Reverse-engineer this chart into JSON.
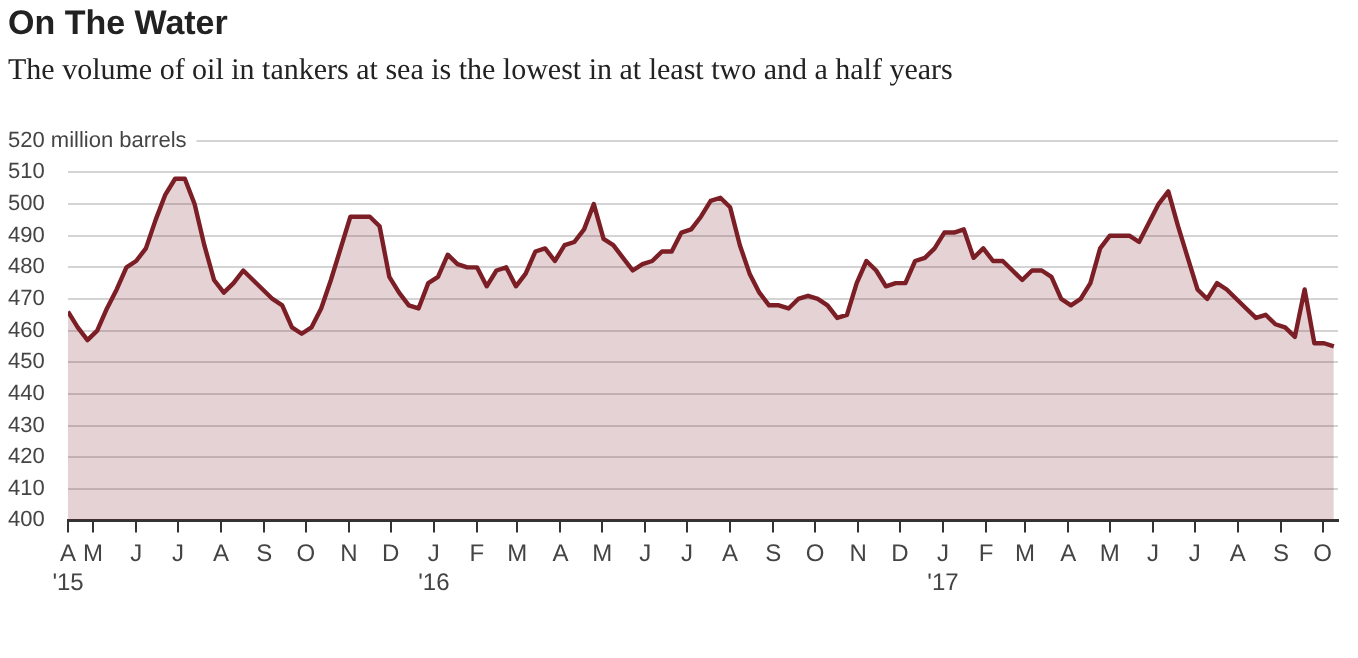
{
  "chart_data": {
    "type": "area",
    "title": "On The Water",
    "subtitle": "The volume of oil in tankers at sea is the lowest in at least two and a half years",
    "x": [
      "2015-04-13",
      "2015-04-20",
      "2015-04-27",
      "2015-05-04",
      "2015-05-11",
      "2015-05-18",
      "2015-05-25",
      "2015-06-01",
      "2015-06-08",
      "2015-06-15",
      "2015-06-22",
      "2015-06-29",
      "2015-07-06",
      "2015-07-13",
      "2015-07-20",
      "2015-07-27",
      "2015-08-03",
      "2015-08-10",
      "2015-08-17",
      "2015-08-24",
      "2015-08-31",
      "2015-09-07",
      "2015-09-14",
      "2015-09-21",
      "2015-09-28",
      "2015-10-05",
      "2015-10-12",
      "2015-10-19",
      "2015-10-26",
      "2015-11-02",
      "2015-11-09",
      "2015-11-16",
      "2015-11-23",
      "2015-11-30",
      "2015-12-07",
      "2015-12-14",
      "2015-12-21",
      "2015-12-28",
      "2016-01-04",
      "2016-01-11",
      "2016-01-18",
      "2016-01-25",
      "2016-02-01",
      "2016-02-08",
      "2016-02-15",
      "2016-02-22",
      "2016-02-29",
      "2016-03-07",
      "2016-03-14",
      "2016-03-21",
      "2016-03-28",
      "2016-04-04",
      "2016-04-11",
      "2016-04-18",
      "2016-04-25",
      "2016-05-02",
      "2016-05-09",
      "2016-05-16",
      "2016-05-23",
      "2016-05-30",
      "2016-06-06",
      "2016-06-13",
      "2016-06-20",
      "2016-06-27",
      "2016-07-04",
      "2016-07-11",
      "2016-07-18",
      "2016-07-25",
      "2016-08-01",
      "2016-08-08",
      "2016-08-15",
      "2016-08-22",
      "2016-08-29",
      "2016-09-05",
      "2016-09-12",
      "2016-09-19",
      "2016-09-26",
      "2016-10-03",
      "2016-10-10",
      "2016-10-17",
      "2016-10-24",
      "2016-10-31",
      "2016-11-07",
      "2016-11-14",
      "2016-11-21",
      "2016-11-28",
      "2016-12-05",
      "2016-12-12",
      "2016-12-19",
      "2016-12-26",
      "2017-01-02",
      "2017-01-09",
      "2017-01-16",
      "2017-01-23",
      "2017-01-30",
      "2017-02-06",
      "2017-02-13",
      "2017-02-20",
      "2017-02-27",
      "2017-03-06",
      "2017-03-13",
      "2017-03-20",
      "2017-03-27",
      "2017-04-03",
      "2017-04-10",
      "2017-04-17",
      "2017-04-24",
      "2017-05-01",
      "2017-05-08",
      "2017-05-15",
      "2017-05-22",
      "2017-05-29",
      "2017-06-05",
      "2017-06-12",
      "2017-06-19",
      "2017-06-26",
      "2017-07-03",
      "2017-07-10",
      "2017-07-17",
      "2017-07-24",
      "2017-07-31",
      "2017-08-07",
      "2017-08-14",
      "2017-08-21",
      "2017-08-28",
      "2017-09-04",
      "2017-09-11",
      "2017-09-18",
      "2017-09-25",
      "2017-10-02",
      "2017-10-09"
    ],
    "series": [
      {
        "color": "#7b1e26",
        "values": [
          466,
          461,
          457,
          460,
          467,
          473,
          480,
          482,
          486,
          495,
          503,
          508,
          508,
          500,
          487,
          476,
          472,
          475,
          479,
          476,
          473,
          470,
          468,
          461,
          459,
          461,
          467,
          476,
          486,
          496,
          496,
          496,
          493,
          477,
          472,
          468,
          467,
          475,
          477,
          484,
          481,
          480,
          480,
          474,
          479,
          480,
          474,
          478,
          485,
          486,
          482,
          487,
          488,
          492,
          500,
          489,
          487,
          483,
          479,
          481,
          482,
          485,
          485,
          491,
          492,
          496,
          501,
          502,
          499,
          487,
          478,
          472,
          468,
          468,
          467,
          470,
          471,
          470,
          468,
          464,
          465,
          475,
          482,
          479,
          474,
          475,
          475,
          482,
          483,
          486,
          491,
          491,
          492,
          483,
          486,
          482,
          482,
          479,
          476,
          479,
          479,
          477,
          470,
          468,
          470,
          475,
          486,
          490,
          490,
          490,
          488,
          494,
          500,
          504,
          493,
          483,
          473,
          470,
          475,
          473,
          470,
          467,
          464,
          465,
          462,
          461,
          458,
          473,
          456,
          456,
          455
        ]
      }
    ],
    "ylim": [
      400,
      520
    ],
    "yticks": [
      400,
      410,
      420,
      430,
      440,
      450,
      460,
      470,
      480,
      490,
      500,
      510,
      {
        "value": 520,
        "label": "520 million barrels"
      }
    ],
    "xlim": [
      "2015-04-13",
      "2017-10-12"
    ],
    "xticks": [
      {
        "value": "2015-04-13",
        "label": "A\n'15"
      },
      {
        "value": "2015-05-01",
        "label": "M"
      },
      {
        "value": "2015-06-01",
        "label": "J"
      },
      {
        "value": "2015-07-01",
        "label": "J"
      },
      {
        "value": "2015-08-01",
        "label": "A"
      },
      {
        "value": "2015-09-01",
        "label": "S"
      },
      {
        "value": "2015-10-01",
        "label": "O"
      },
      {
        "value": "2015-11-01",
        "label": "N"
      },
      {
        "value": "2015-12-01",
        "label": "D"
      },
      {
        "value": "2016-01-01",
        "label": "J\n'16"
      },
      {
        "value": "2016-02-01",
        "label": "F"
      },
      {
        "value": "2016-03-01",
        "label": "M"
      },
      {
        "value": "2016-04-01",
        "label": "A"
      },
      {
        "value": "2016-05-01",
        "label": "M"
      },
      {
        "value": "2016-06-01",
        "label": "J"
      },
      {
        "value": "2016-07-01",
        "label": "J"
      },
      {
        "value": "2016-08-01",
        "label": "A"
      },
      {
        "value": "2016-09-01",
        "label": "S"
      },
      {
        "value": "2016-10-01",
        "label": "O"
      },
      {
        "value": "2016-11-01",
        "label": "N"
      },
      {
        "value": "2016-12-01",
        "label": "D"
      },
      {
        "value": "2017-01-01",
        "label": "J\n'17"
      },
      {
        "value": "2017-02-01",
        "label": "F"
      },
      {
        "value": "2017-03-01",
        "label": "M"
      },
      {
        "value": "2017-04-01",
        "label": "A"
      },
      {
        "value": "2017-05-01",
        "label": "M"
      },
      {
        "value": "2017-06-01",
        "label": "J"
      },
      {
        "value": "2017-07-01",
        "label": "J"
      },
      {
        "value": "2017-08-01",
        "label": "A"
      },
      {
        "value": "2017-09-01",
        "label": "S"
      },
      {
        "value": "2017-10-01",
        "label": "O"
      }
    ],
    "grid": "y",
    "legend": false,
    "marker": "none",
    "line_style": "solid"
  }
}
